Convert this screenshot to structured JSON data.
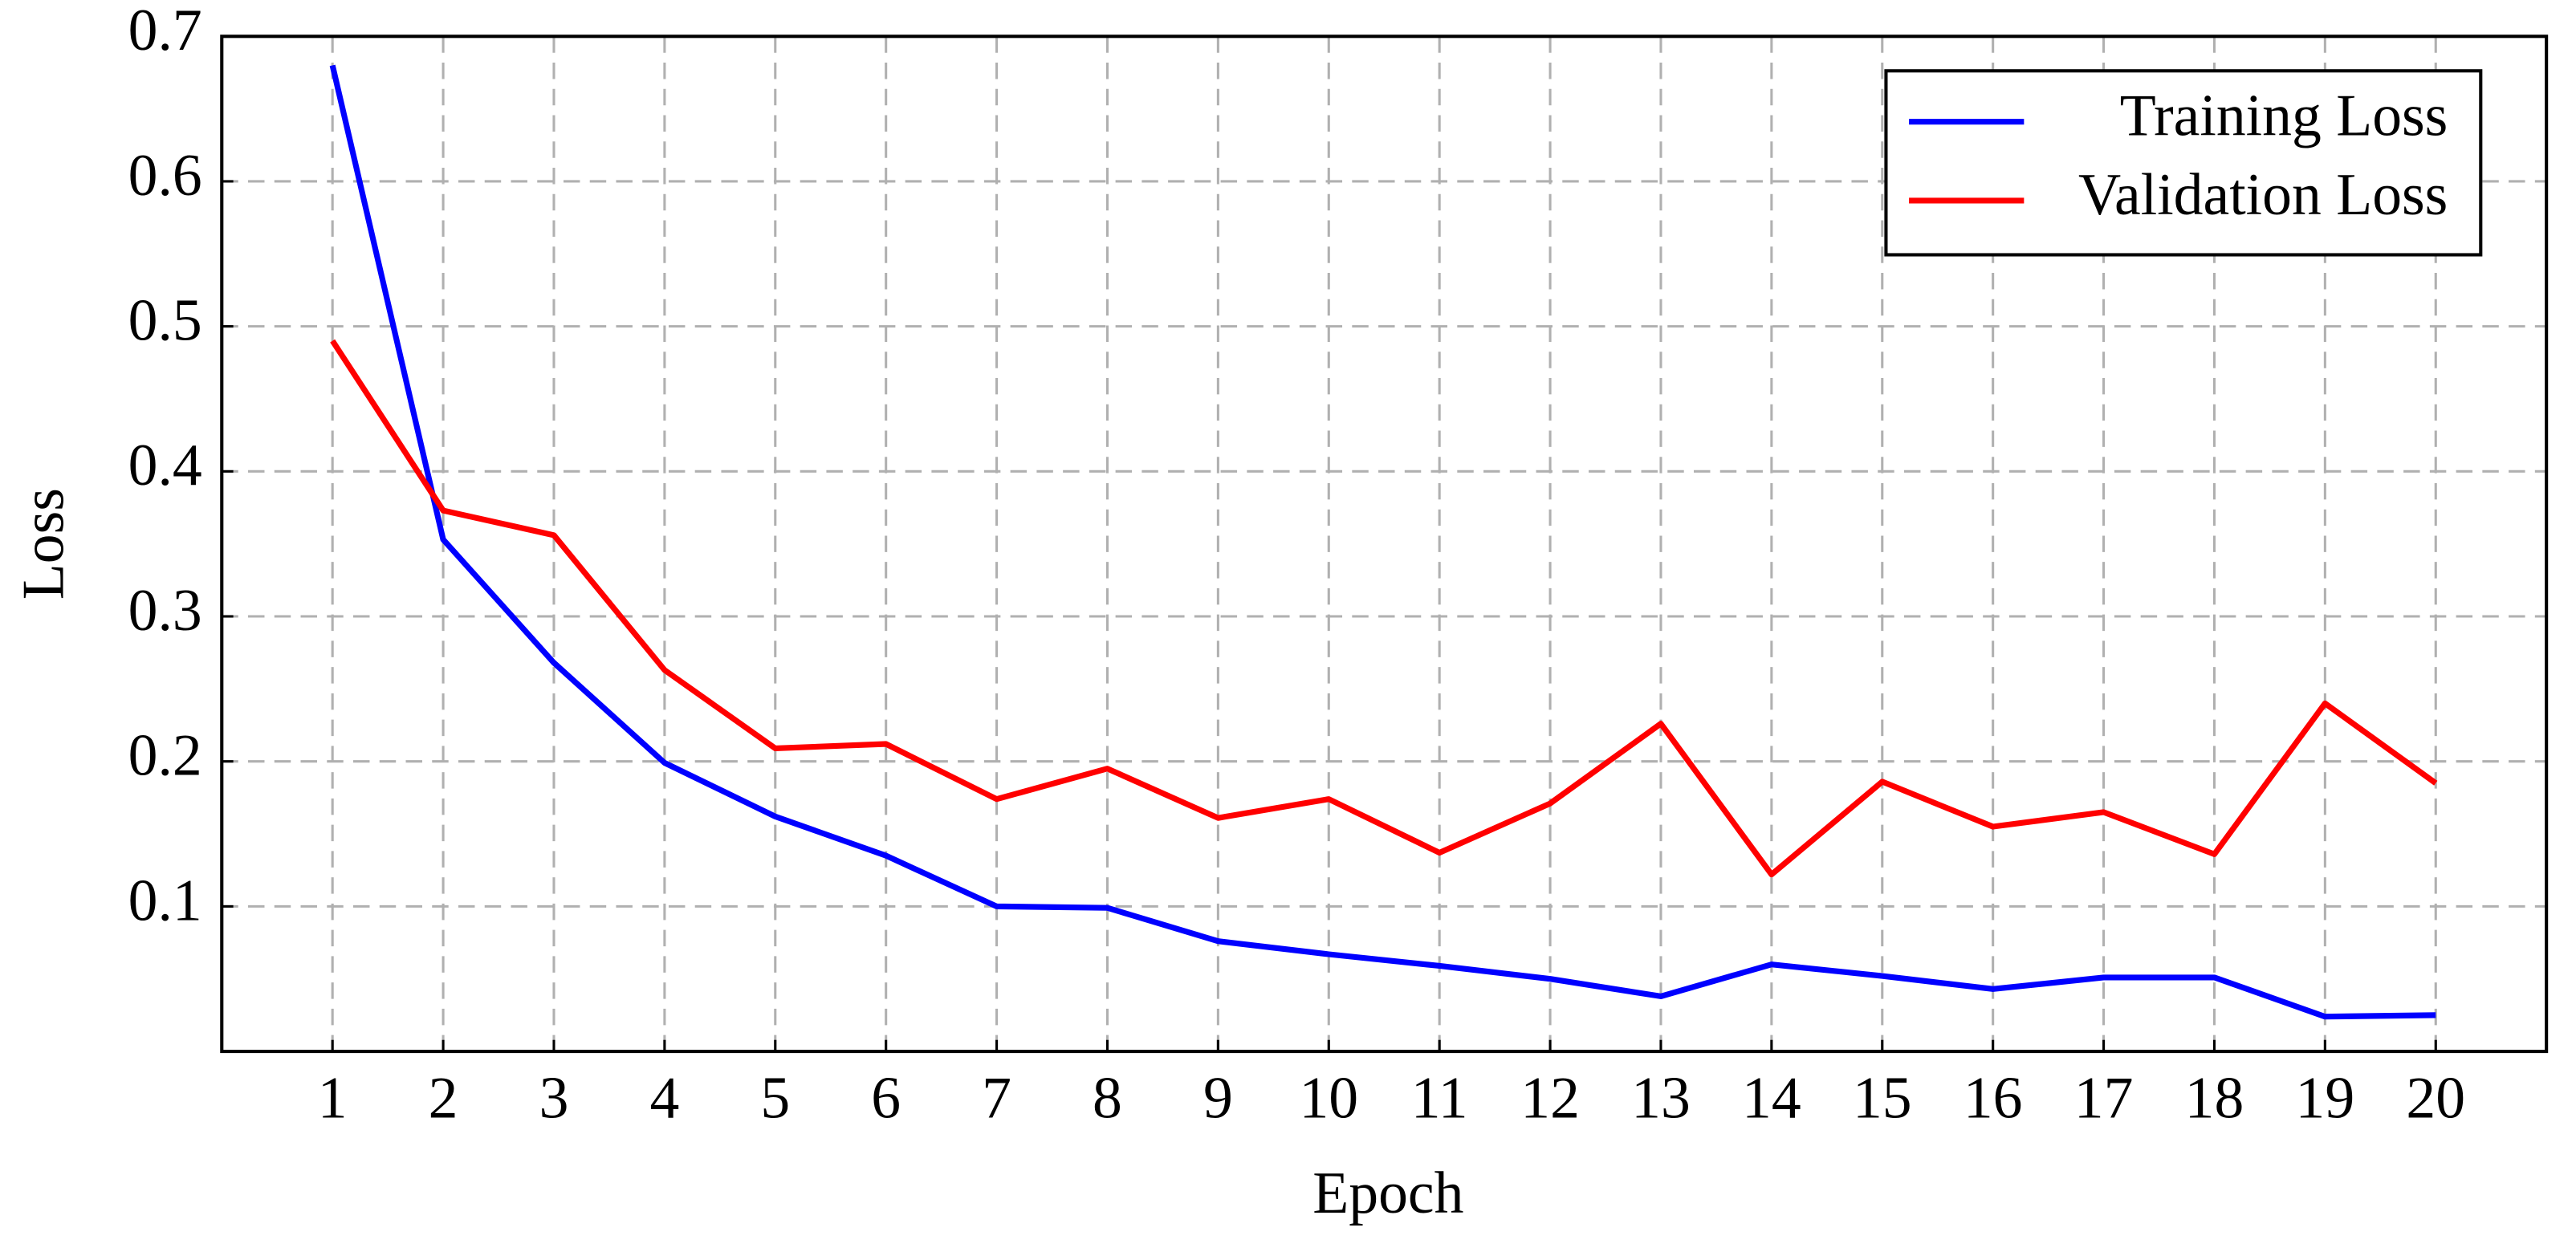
{
  "chart_data": {
    "type": "line",
    "x_label": "Epoch",
    "y_label": "Loss",
    "x": [
      1,
      2,
      3,
      4,
      5,
      6,
      7,
      8,
      9,
      10,
      11,
      12,
      13,
      14,
      15,
      16,
      17,
      18,
      19,
      20
    ],
    "series": [
      {
        "name": "Training Loss",
        "color": "#0000ff",
        "values": [
          0.68,
          0.353,
          0.268,
          0.199,
          0.162,
          0.135,
          0.1,
          0.099,
          0.076,
          0.067,
          0.059,
          0.05,
          0.038,
          0.06,
          0.052,
          0.043,
          0.051,
          0.051,
          0.024,
          0.025
        ]
      },
      {
        "name": "Validation Loss",
        "color": "#ff0000",
        "values": [
          0.49,
          0.373,
          0.356,
          0.263,
          0.209,
          0.212,
          0.174,
          0.195,
          0.161,
          0.174,
          0.137,
          0.171,
          0.226,
          0.122,
          0.186,
          0.155,
          0.165,
          0.136,
          0.24,
          0.185
        ]
      }
    ],
    "xlim": [
      0,
      21
    ],
    "ylim": [
      0,
      0.7
    ],
    "xticks": [
      1,
      2,
      3,
      4,
      5,
      6,
      7,
      8,
      9,
      10,
      11,
      12,
      13,
      14,
      15,
      16,
      17,
      18,
      19,
      20
    ],
    "yticks": [
      0.1,
      0.2,
      0.3,
      0.4,
      0.5,
      0.6,
      0.7
    ],
    "grid": true,
    "legend": "top-right"
  }
}
